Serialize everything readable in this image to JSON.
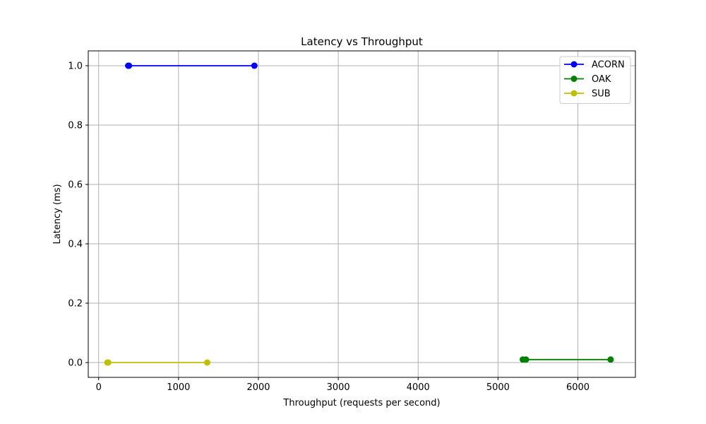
{
  "chart_data": {
    "type": "line",
    "title": "Latency vs Throughput",
    "xlabel": "Throughput (requests per second)",
    "ylabel": "Latency (ms)",
    "xlim": [
      -130,
      6720
    ],
    "ylim": [
      -0.05,
      1.05
    ],
    "xticks": [
      0,
      1000,
      2000,
      3000,
      4000,
      5000,
      6000
    ],
    "yticks": [
      0.0,
      0.2,
      0.4,
      0.6,
      0.8,
      1.0
    ],
    "xtick_labels": [
      "0",
      "1000",
      "2000",
      "3000",
      "4000",
      "5000",
      "6000"
    ],
    "ytick_labels": [
      "0.0",
      "0.2",
      "0.4",
      "0.6",
      "0.8",
      "1.0"
    ],
    "grid": true,
    "legend_position": "top-right",
    "series": [
      {
        "name": "ACORN",
        "color": "#0000ff",
        "x": [
          370,
          380,
          1950
        ],
        "y": [
          1.0,
          1.0,
          1.0
        ]
      },
      {
        "name": "OAK",
        "color": "#008000",
        "x": [
          5310,
          5350,
          6410
        ],
        "y": [
          0.01,
          0.01,
          0.01
        ]
      },
      {
        "name": "SUB",
        "color": "#bfbf00",
        "x": [
          110,
          120,
          1360
        ],
        "y": [
          0.0,
          0.0,
          0.0
        ]
      }
    ]
  }
}
